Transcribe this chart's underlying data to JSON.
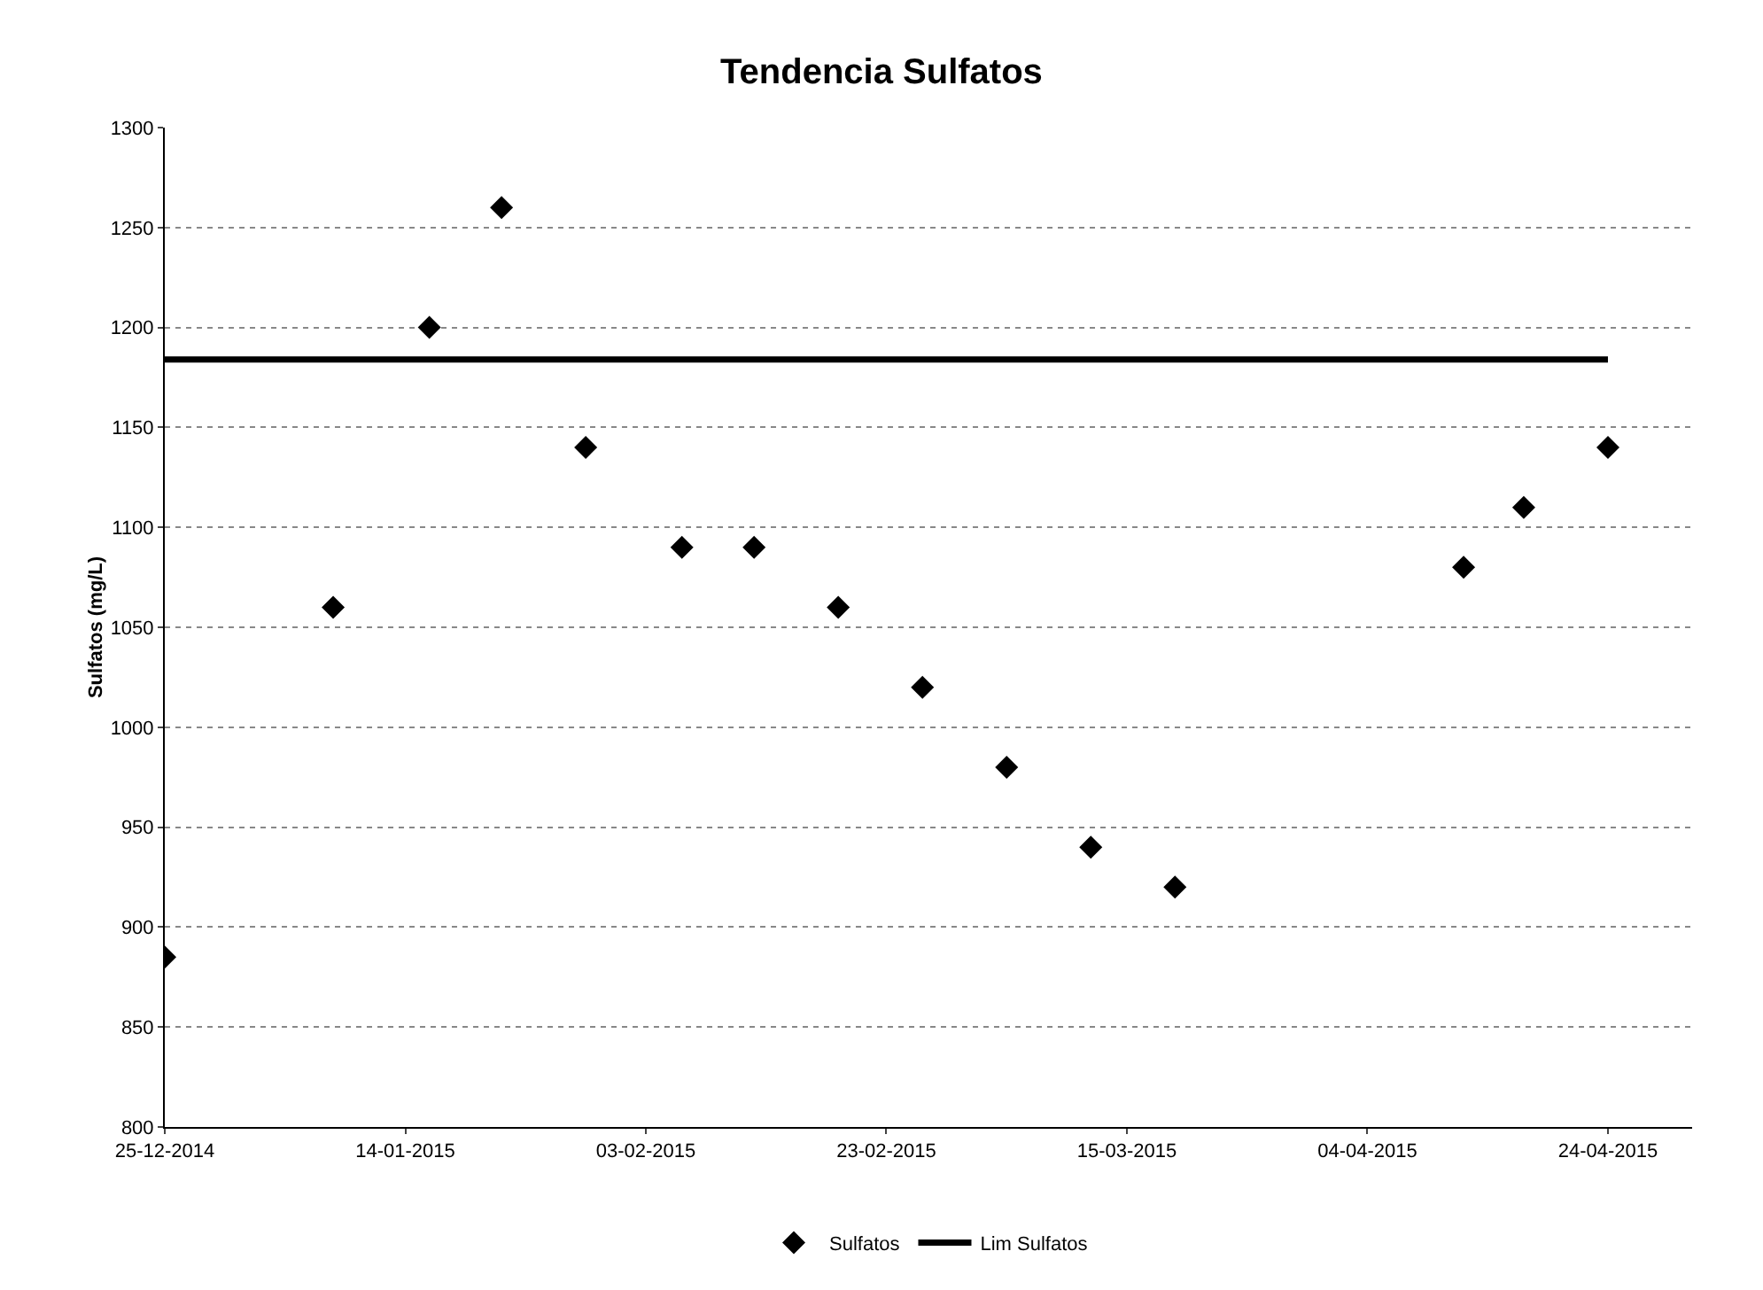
{
  "chart_data": {
    "type": "scatter",
    "title": "Tendencia Sulfatos",
    "ylabel": "Sulfatos (mg/L)",
    "xlim": [
      "2014-12-25",
      "2015-05-01"
    ],
    "xticks": [
      {
        "value": "2014-12-25",
        "label": "25-12-2014"
      },
      {
        "value": "2015-01-14",
        "label": "14-01-2015"
      },
      {
        "value": "2015-02-03",
        "label": "03-02-2015"
      },
      {
        "value": "2015-02-23",
        "label": "23-02-2015"
      },
      {
        "value": "2015-03-15",
        "label": "15-03-2015"
      },
      {
        "value": "2015-04-04",
        "label": "04-04-2015"
      },
      {
        "value": "2015-04-24",
        "label": "24-04-2015"
      }
    ],
    "ylim": [
      800,
      1300
    ],
    "yticks": [
      800,
      850,
      900,
      950,
      1000,
      1050,
      1100,
      1150,
      1200,
      1250,
      1300
    ],
    "grid": "y",
    "legend": "bottom",
    "series": [
      {
        "name": "Sulfatos",
        "marker": "diamond",
        "color": "#000000",
        "x": [
          "2014-12-25",
          "2015-01-08",
          "2015-01-16",
          "2015-01-22",
          "2015-01-29",
          "2015-02-06",
          "2015-02-12",
          "2015-02-19",
          "2015-02-26",
          "2015-03-05",
          "2015-03-12",
          "2015-03-19",
          "2015-04-12",
          "2015-04-17",
          "2015-04-24"
        ],
        "values": [
          885,
          1060,
          1200,
          1260,
          1140,
          1090,
          1090,
          1060,
          1020,
          980,
          940,
          920,
          1080,
          1110,
          1140
        ]
      },
      {
        "name": "Lim Sulfatos",
        "type": "line",
        "marker": "none",
        "color": "#000000",
        "line_style": "solid",
        "x": [
          "2014-12-25",
          "2015-04-24"
        ],
        "values": [
          1184,
          1184
        ]
      }
    ]
  }
}
